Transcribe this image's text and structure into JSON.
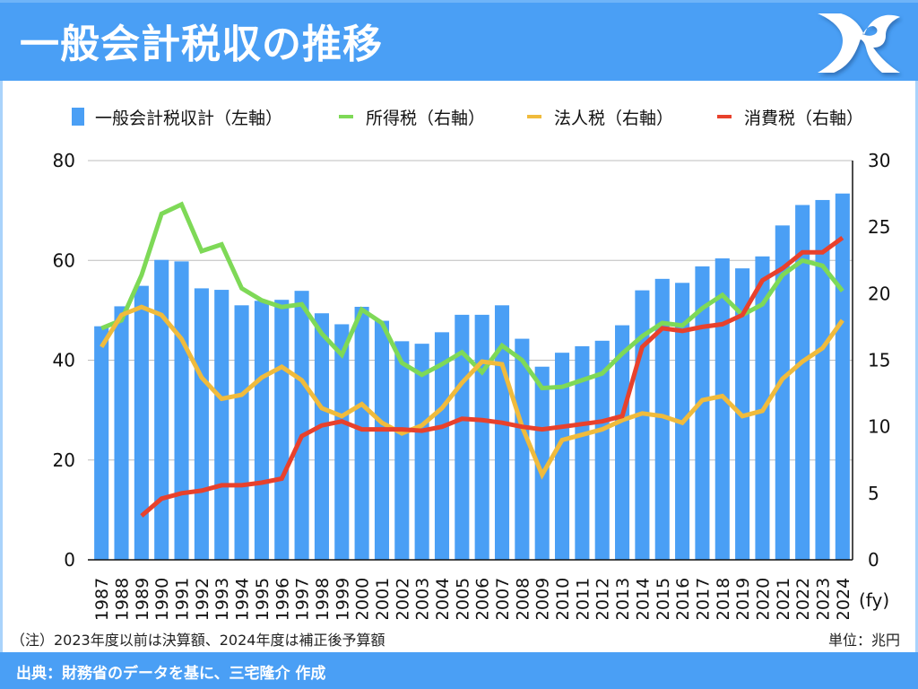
{
  "header": {
    "title": "一般会計税収の推移",
    "logo": "mr-monogram-logo"
  },
  "colors": {
    "header_bg": "#4a9ff5",
    "total": "#4a9ff5",
    "income": "#7ed957",
    "corporate": "#f0bb3c",
    "consumption": "#e8412c",
    "grid": "#bdbdbd"
  },
  "legend": [
    {
      "label": "一般会計税収計（左軸）",
      "kind": "bar",
      "color": "#4a9ff5"
    },
    {
      "label": "所得税（右軸）",
      "kind": "line",
      "color": "#7ed957"
    },
    {
      "label": "法人税（右軸）",
      "kind": "line",
      "color": "#f0bb3c"
    },
    {
      "label": "消費税（右軸）",
      "kind": "line",
      "color": "#e8412c"
    }
  ],
  "chart_data": {
    "type": "bar",
    "title": "一般会計税収の推移",
    "xlabel": "(fy)",
    "ylabel": "",
    "unit": "兆円",
    "grid": true,
    "legend_position": "top",
    "categories": [
      "1987",
      "1988",
      "1989",
      "1990",
      "1991",
      "1992",
      "1993",
      "1994",
      "1995",
      "1996",
      "1997",
      "1998",
      "1999",
      "2000",
      "2001",
      "2002",
      "2003",
      "2004",
      "2005",
      "2006",
      "2007",
      "2008",
      "2009",
      "2010",
      "2011",
      "2012",
      "2013",
      "2014",
      "2015",
      "2016",
      "2017",
      "2018",
      "2019",
      "2020",
      "2021",
      "2022",
      "2023",
      "2024"
    ],
    "y_left": {
      "range": [
        0,
        80
      ],
      "ticks": [
        0,
        20,
        40,
        60,
        80
      ]
    },
    "y_right": {
      "range": [
        0,
        30
      ],
      "ticks": [
        0,
        5,
        10,
        15,
        20,
        25,
        30
      ]
    },
    "series": [
      {
        "name": "一般会計税収計（左軸）",
        "type": "bar",
        "axis": "left",
        "color": "#4a9ff5",
        "values": [
          46.8,
          50.8,
          54.9,
          60.1,
          59.8,
          54.4,
          54.1,
          51.0,
          51.9,
          52.1,
          53.9,
          49.4,
          47.2,
          50.7,
          47.9,
          43.8,
          43.3,
          45.6,
          49.1,
          49.1,
          51.0,
          44.3,
          38.7,
          41.5,
          42.8,
          43.9,
          47.0,
          54.0,
          56.3,
          55.5,
          58.8,
          60.4,
          58.4,
          60.8,
          67.0,
          71.1,
          72.1,
          73.4
        ]
      },
      {
        "name": "所得税（右軸）",
        "type": "line",
        "axis": "right",
        "color": "#7ed957",
        "values": [
          17.4,
          18.0,
          21.4,
          26.0,
          26.7,
          23.2,
          23.7,
          20.4,
          19.5,
          19.0,
          19.2,
          17.0,
          15.4,
          18.8,
          17.8,
          14.8,
          13.9,
          14.7,
          15.6,
          14.1,
          16.1,
          15.0,
          12.9,
          13.0,
          13.5,
          14.0,
          15.5,
          16.8,
          17.8,
          17.6,
          18.9,
          19.9,
          18.4,
          19.2,
          21.4,
          22.5,
          22.1,
          20.2
        ]
      },
      {
        "name": "法人税（右軸）",
        "type": "line",
        "axis": "right",
        "color": "#f0bb3c",
        "values": [
          16.0,
          18.4,
          19.0,
          18.4,
          16.6,
          13.7,
          12.1,
          12.4,
          13.7,
          14.5,
          13.5,
          11.4,
          10.8,
          11.7,
          10.3,
          9.5,
          10.1,
          11.4,
          13.3,
          14.9,
          14.7,
          10.0,
          6.4,
          9.0,
          9.4,
          9.8,
          10.5,
          11.0,
          10.8,
          10.3,
          12.0,
          12.3,
          10.8,
          11.2,
          13.6,
          14.9,
          15.9,
          18.0
        ]
      },
      {
        "name": "消費税（右軸）",
        "type": "line",
        "axis": "right",
        "color": "#e8412c",
        "values": [
          null,
          null,
          3.3,
          4.6,
          5.0,
          5.2,
          5.6,
          5.6,
          5.8,
          6.1,
          9.3,
          10.1,
          10.4,
          9.8,
          9.8,
          9.8,
          9.7,
          10.0,
          10.6,
          10.5,
          10.3,
          10.0,
          9.8,
          10.0,
          10.2,
          10.4,
          10.8,
          16.0,
          17.4,
          17.2,
          17.5,
          17.7,
          18.4,
          21.0,
          21.9,
          23.1,
          23.1,
          24.2
        ]
      }
    ]
  },
  "footnote": "（注）2023年度以前は決算額、2024年度は補正後予算額",
  "unit_label": "単位：兆円",
  "footer": {
    "source": "出典：財務省のデータを基に、三宅隆介 作成"
  }
}
